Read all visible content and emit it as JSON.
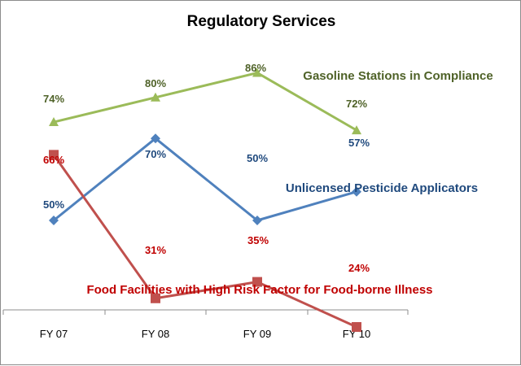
{
  "chart_data": {
    "type": "line",
    "title": "Regulatory Services",
    "categories": [
      "FY 07",
      "FY 08",
      "FY 09",
      "FY 10"
    ],
    "ylim": [
      0,
      100
    ],
    "grid": false,
    "legend": "inline labels beside each line",
    "series": [
      {
        "name": "Gasoline Stations in Compliance",
        "values": [
          74,
          80,
          86,
          72
        ],
        "labels": [
          "74%",
          "80%",
          "86%",
          "72%"
        ],
        "color": "#9BBB59",
        "label_color": "#4F6228",
        "marker": "triangle"
      },
      {
        "name": "Unlicensed Pesticide Applicators",
        "values": [
          50,
          70,
          50,
          57
        ],
        "labels": [
          "50%",
          "70%",
          "50%",
          "57%"
        ],
        "color": "#4F81BD",
        "label_color": "#1F497D",
        "marker": "diamond"
      },
      {
        "name": "Food Facilities with High Risk Factor for Food-borne Illness",
        "values": [
          66,
          31,
          35,
          24
        ],
        "labels": [
          "66%",
          "31%",
          "35%",
          "24%"
        ],
        "color": "#C0504D",
        "label_color": "#C00000",
        "marker": "square"
      }
    ]
  }
}
